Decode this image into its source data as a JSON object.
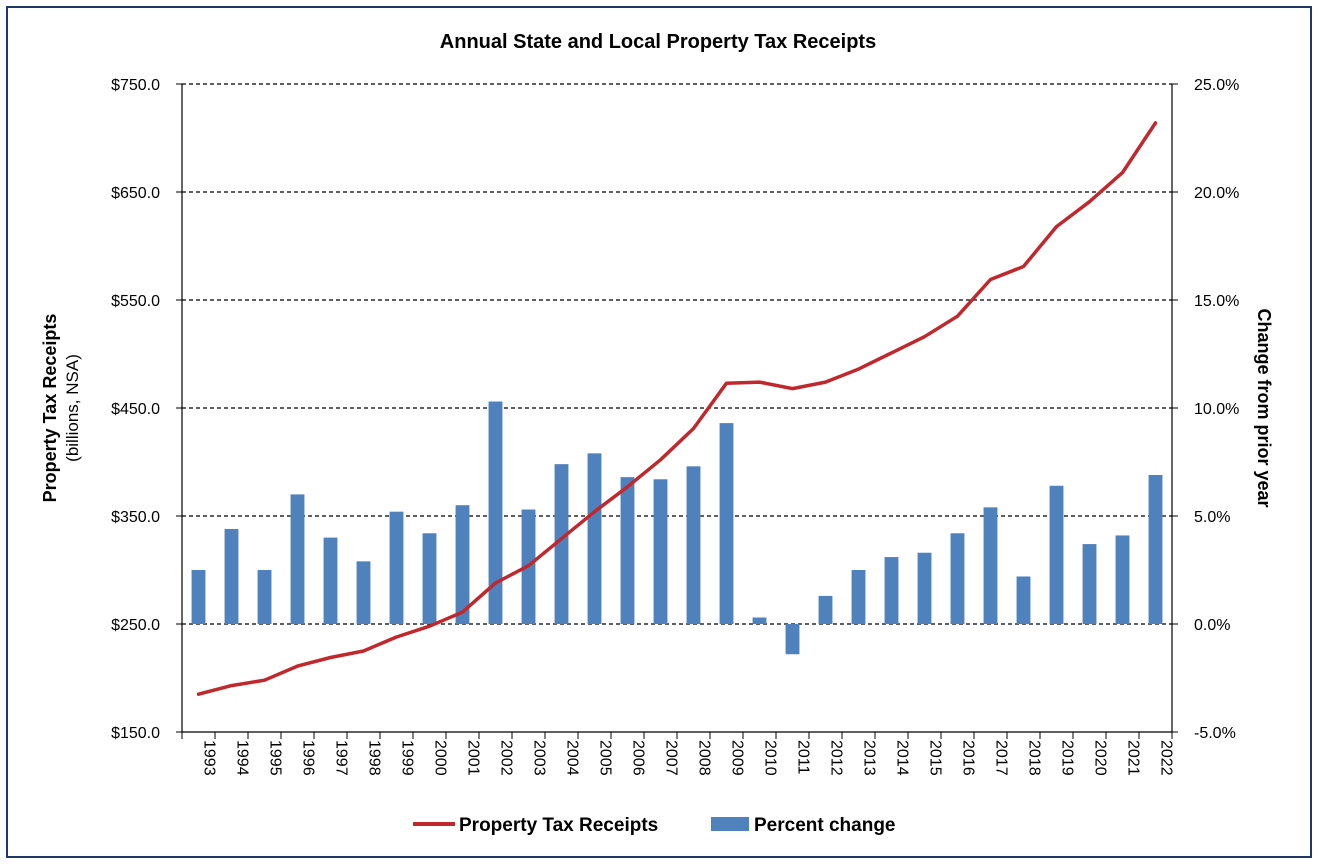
{
  "chart_data": {
    "type": "bar+line",
    "title": "Annual State and Local Property Tax Receipts",
    "categories": [
      "1993",
      "1994",
      "1995",
      "1996",
      "1997",
      "1998",
      "1999",
      "2000",
      "2001",
      "2002",
      "2003",
      "2004",
      "2005",
      "2006",
      "2007",
      "2008",
      "2009",
      "2010",
      "2011",
      "2012",
      "2013",
      "2014",
      "2015",
      "2016",
      "2017",
      "2018",
      "2019",
      "2020",
      "2021",
      "2022"
    ],
    "series": [
      {
        "name": "Property Tax Receipts",
        "kind": "line",
        "axis": "left",
        "color": "#c0282d",
        "values": [
          185,
          193,
          198,
          211,
          219,
          225,
          238,
          248,
          261,
          288,
          304,
          329,
          354,
          377,
          402,
          431,
          473,
          474,
          468,
          474,
          486,
          501,
          516,
          535,
          569,
          581,
          618,
          641,
          668,
          714
        ]
      },
      {
        "name": "Percent change",
        "kind": "bar",
        "axis": "right",
        "color": "#4f81bd",
        "values": [
          2.5,
          4.4,
          2.5,
          6.0,
          4.0,
          2.9,
          5.2,
          4.2,
          5.5,
          10.3,
          5.3,
          7.4,
          7.9,
          6.8,
          6.7,
          7.3,
          9.3,
          0.3,
          -1.4,
          1.3,
          2.5,
          3.1,
          3.3,
          4.2,
          5.4,
          2.2,
          6.4,
          3.7,
          4.1,
          6.9
        ]
      }
    ],
    "y_left": {
      "label": "Property Tax Receipts",
      "sublabel": "(billions, NSA)",
      "min": 150,
      "max": 750,
      "step": 100,
      "ticks": [
        "$150.0",
        "$250.0",
        "$350.0",
        "$450.0",
        "$550.0",
        "$650.0",
        "$750.0"
      ]
    },
    "y_right": {
      "label": "Change from prior year",
      "min": -5,
      "max": 25,
      "step": 5,
      "ticks": [
        "-5.0%",
        "0.0%",
        "5.0%",
        "10.0%",
        "15.0%",
        "20.0%",
        "25.0%"
      ]
    },
    "grid": "horizontal-dashed",
    "legend_position": "bottom"
  }
}
